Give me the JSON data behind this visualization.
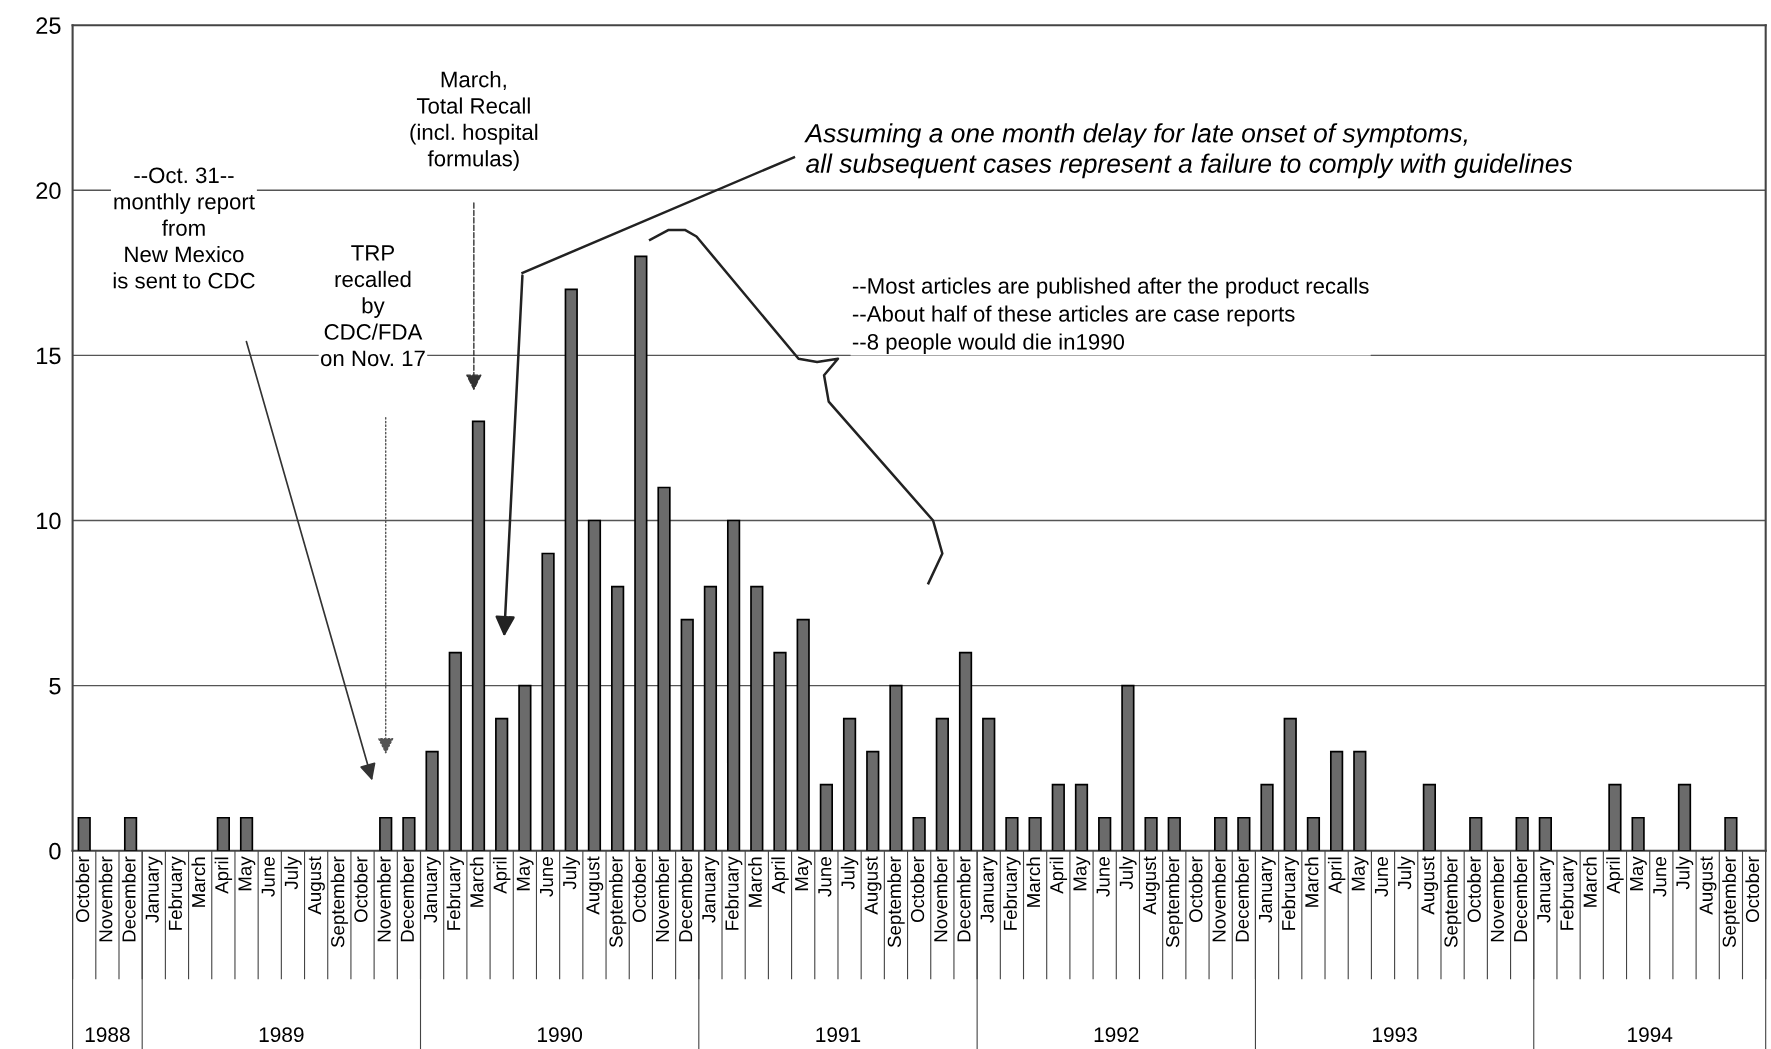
{
  "chart_data": {
    "type": "bar",
    "categories": [
      "October",
      "November",
      "December",
      "January",
      "February",
      "March",
      "April",
      "May",
      "June",
      "July",
      "August",
      "September",
      "October",
      "November",
      "December",
      "January",
      "February",
      "March",
      "April",
      "May",
      "June",
      "July",
      "August",
      "September",
      "October",
      "November",
      "December",
      "January",
      "February",
      "March",
      "April",
      "May",
      "June",
      "July",
      "August",
      "September",
      "October",
      "November",
      "December",
      "January",
      "February",
      "March",
      "April",
      "May",
      "June",
      "July",
      "August",
      "September",
      "October",
      "November",
      "December",
      "January",
      "February",
      "March",
      "April",
      "May",
      "June",
      "July",
      "August",
      "September",
      "October",
      "November",
      "December",
      "January",
      "February",
      "March",
      "April",
      "May",
      "June",
      "July",
      "August",
      "September",
      "October"
    ],
    "values": [
      1,
      0,
      1,
      0,
      0,
      0,
      1,
      1,
      0,
      0,
      0,
      0,
      0,
      1,
      1,
      3,
      6,
      13,
      4,
      5,
      9,
      17,
      10,
      8,
      18,
      11,
      7,
      8,
      10,
      8,
      6,
      7,
      2,
      4,
      3,
      5,
      1,
      4,
      6,
      4,
      1,
      1,
      2,
      2,
      1,
      5,
      1,
      1,
      0,
      1,
      1,
      2,
      4,
      1,
      3,
      3,
      0,
      0,
      2,
      0,
      1,
      0,
      1,
      1,
      0,
      0,
      2,
      1,
      0,
      2,
      0,
      1,
      0
    ],
    "color": "#6b6b6b",
    "ylim": [
      0,
      25
    ],
    "yticks": [
      0,
      5,
      10,
      15,
      20,
      25
    ],
    "grid": "y",
    "annotations": [
      "1988",
      "1989",
      "1990",
      "1991",
      "1992",
      "1993",
      "1994",
      "--Oct. 31--\nmonthly report\nfrom\nNew Mexico\nis sent to CDC",
      "TRP\nrecalled\nby\nCDC/FDA\non Nov. 17",
      "March,\nTotal Recall\n(incl. hospital\nformulas)",
      "Assuming a one month delay for late onset of symptoms,\nall subsequent cases represent a failure to comply with guidelines",
      "--Most articles are published after the product recalls\n--About half of these articles are case reports\n--8 people would die in1990"
    ]
  }
}
